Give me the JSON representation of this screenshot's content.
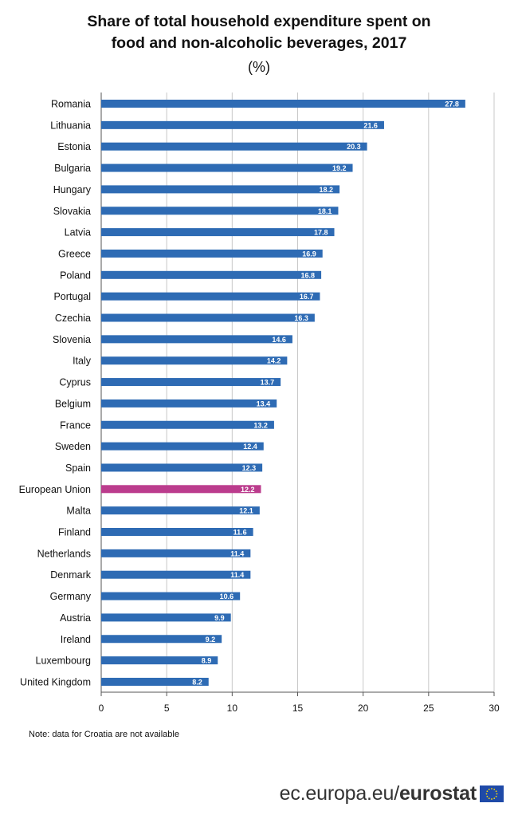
{
  "chart_data": {
    "type": "bar",
    "orientation": "horizontal",
    "title": "Share of total household expenditure spent on food and non-alcoholic beverages, 2017",
    "subtitle": "(%)",
    "categories": [
      "Romania",
      "Lithuania",
      "Estonia",
      "Bulgaria",
      "Hungary",
      "Slovakia",
      "Latvia",
      "Greece",
      "Poland",
      "Portugal",
      "Czechia",
      "Slovenia",
      "Italy",
      "Cyprus",
      "Belgium",
      "France",
      "Sweden",
      "Spain",
      "European Union",
      "Malta",
      "Finland",
      "Netherlands",
      "Denmark",
      "Germany",
      "Austria",
      "Ireland",
      "Luxembourg",
      "United Kingdom"
    ],
    "values": [
      27.8,
      21.6,
      20.3,
      19.2,
      18.2,
      18.1,
      17.8,
      16.9,
      16.8,
      16.7,
      16.3,
      14.6,
      14.2,
      13.7,
      13.4,
      13.2,
      12.4,
      12.3,
      12.2,
      12.1,
      11.6,
      11.4,
      11.4,
      10.6,
      9.9,
      9.2,
      8.9,
      8.2
    ],
    "value_labels": [
      "27.8",
      "21.6",
      "20.3",
      "19.2",
      "18.2",
      "18.1",
      "17.8",
      "16.9",
      "16.8",
      "16.7",
      "16.3",
      "14.6",
      "14.2",
      "13.7",
      "13.4",
      "13.2",
      "12.4",
      "12.3",
      "12.2",
      "12.1",
      "11.6",
      "11.4",
      "11.4",
      "10.6",
      "9.9",
      "9.2",
      "8.9",
      "8.2"
    ],
    "highlight": "European Union",
    "xlim": [
      0,
      30
    ],
    "xticks": [
      "0",
      "5",
      "10",
      "15",
      "20",
      "25",
      "30"
    ],
    "grid": "vertical",
    "colors": {
      "bar": "#2e6bb4",
      "highlight": "#bb3c8d",
      "grid": "#c8c8c8",
      "axis": "#555555",
      "label_text": "#ffffff"
    }
  },
  "note": "Note: data for Croatia are not available",
  "footer": {
    "domain": "ec.europa.eu/",
    "brand": "eurostat",
    "logo_icon": "eu-flag-icon"
  }
}
